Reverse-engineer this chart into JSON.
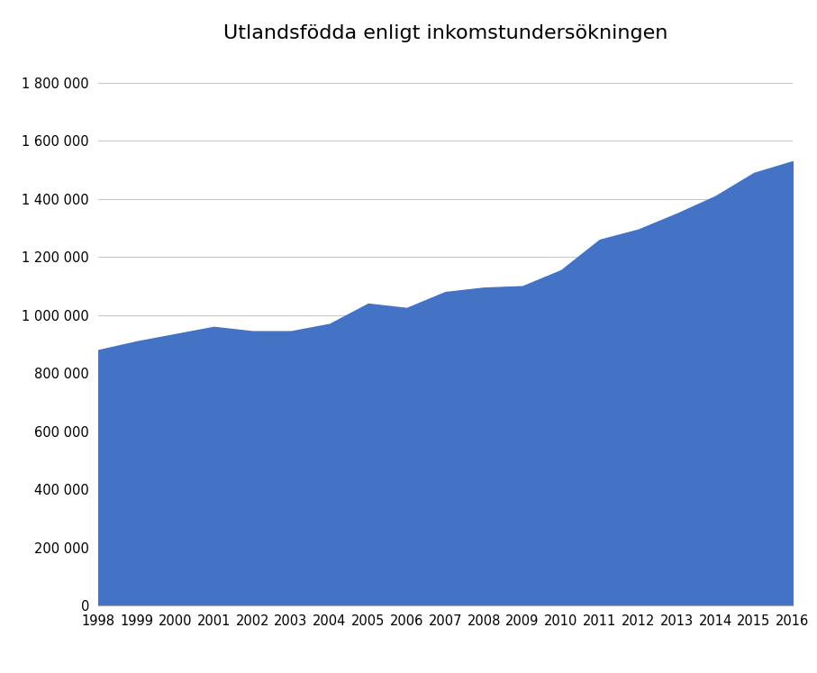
{
  "title": "Utlandsfödda enligt inkomstundersökningen",
  "years": [
    1998,
    1999,
    2000,
    2001,
    2002,
    2003,
    2004,
    2005,
    2006,
    2007,
    2008,
    2009,
    2010,
    2011,
    2012,
    2013,
    2014,
    2015,
    2016
  ],
  "values": [
    880000,
    910000,
    935000,
    960000,
    945000,
    945000,
    970000,
    1040000,
    1025000,
    1080000,
    1095000,
    1100000,
    1155000,
    1260000,
    1295000,
    1350000,
    1410000,
    1490000,
    1530000
  ],
  "area_color": "#4472C4",
  "background_color": "#ffffff",
  "ylim": [
    0,
    1900000
  ],
  "yticks": [
    0,
    200000,
    400000,
    600000,
    800000,
    1000000,
    1200000,
    1400000,
    1600000,
    1800000
  ],
  "grid_color": "#c8c8c8",
  "title_fontsize": 16,
  "tick_fontsize": 10.5
}
